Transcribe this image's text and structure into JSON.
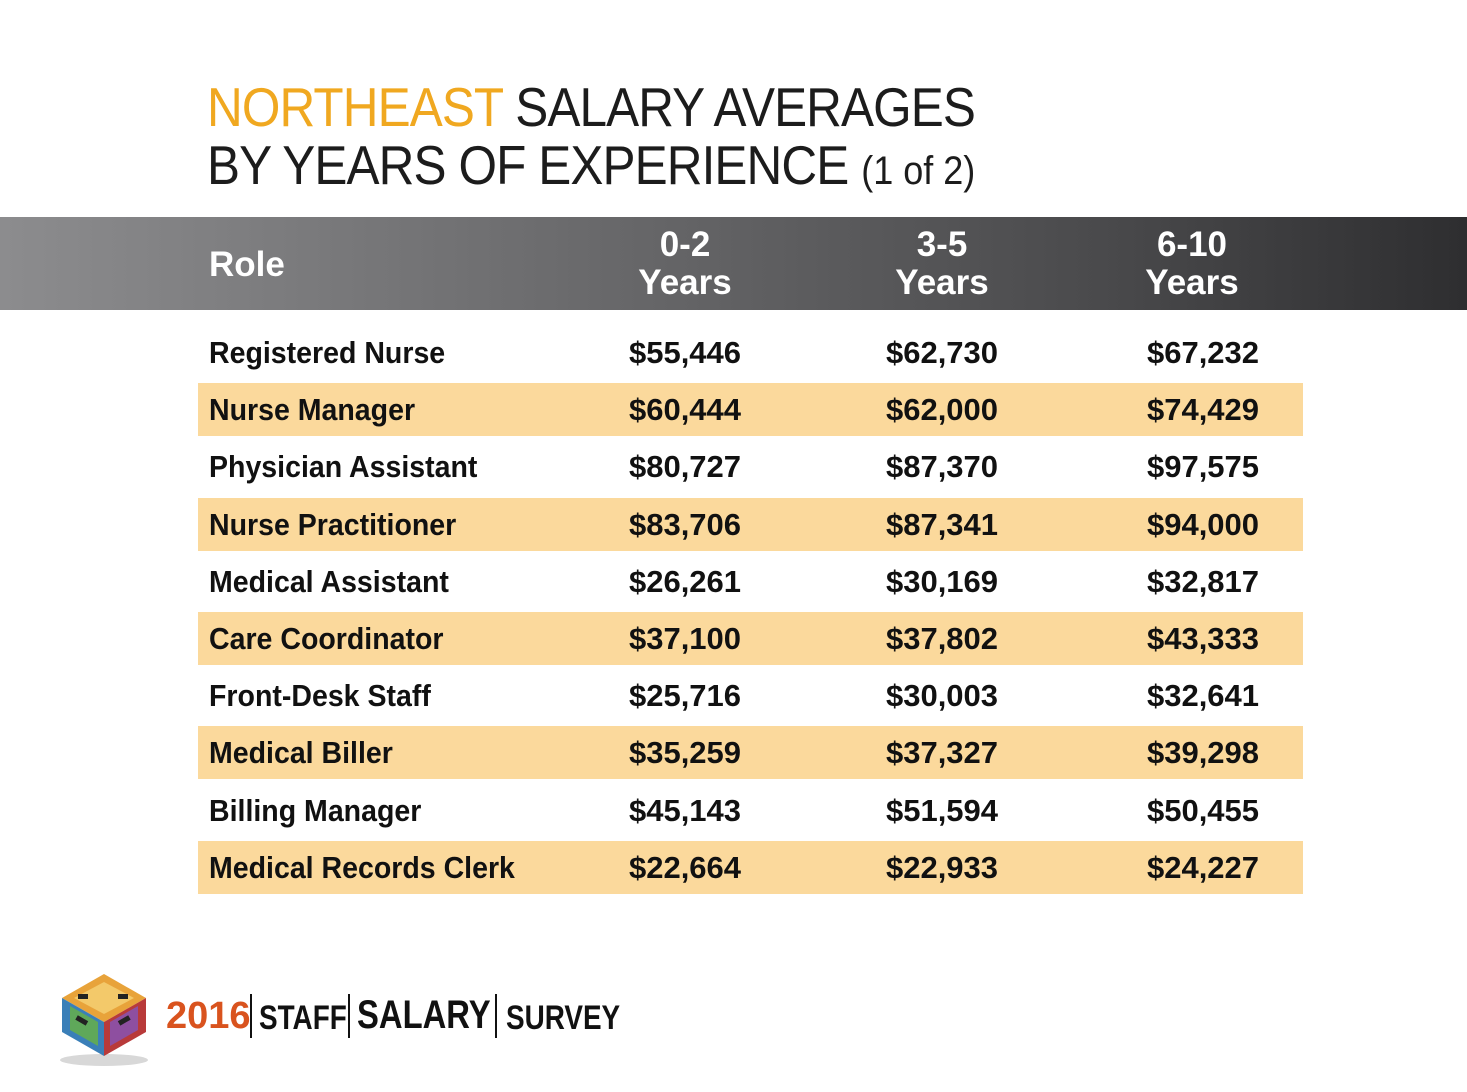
{
  "title": {
    "accent": "NORTHEAST",
    "rest": "SALARY AVERAGES",
    "line2": "BY YEARS OF EXPERIENCE",
    "part": "(1 of 2)"
  },
  "colors": {
    "accent": "#f0a820",
    "row_shade": "#fbd99c",
    "header_dark": "#2e2e30",
    "header_light": "#8c8c8e",
    "footer_year": "#d9531e"
  },
  "chart_data": {
    "type": "table",
    "columns": [
      "Role",
      "0-2 Years",
      "3-5 Years",
      "6-10 Years"
    ],
    "column_headers": [
      {
        "line1": "Role",
        "line2": ""
      },
      {
        "line1": "0-2",
        "line2": "Years"
      },
      {
        "line1": "3-5",
        "line2": "Years"
      },
      {
        "line1": "6-10",
        "line2": "Years"
      }
    ],
    "rows": [
      {
        "role": "Registered Nurse",
        "values": [
          "$55,446",
          "$62,730",
          "$67,232"
        ]
      },
      {
        "role": "Nurse Manager",
        "values": [
          "$60,444",
          "$62,000",
          "$74,429"
        ]
      },
      {
        "role": "Physician Assistant",
        "values": [
          "$80,727",
          "$87,370",
          "$97,575"
        ]
      },
      {
        "role": "Nurse Practitioner",
        "values": [
          "$83,706",
          "$87,341",
          "$94,000"
        ]
      },
      {
        "role": "Medical Assistant",
        "values": [
          "$26,261",
          "$30,169",
          "$32,817"
        ]
      },
      {
        "role": "Care Coordinator",
        "values": [
          "$37,100",
          "$37,802",
          "$43,333"
        ]
      },
      {
        "role": "Front-Desk Staff",
        "values": [
          "$25,716",
          "$30,003",
          "$32,641"
        ]
      },
      {
        "role": "Medical Biller",
        "values": [
          "$35,259",
          "$37,327",
          "$39,298"
        ]
      },
      {
        "role": "Billing Manager",
        "values": [
          "$45,143",
          "$51,594",
          "$50,455"
        ]
      },
      {
        "role": "Medical Records Clerk",
        "values": [
          "$22,664",
          "$22,933",
          "$24,227"
        ]
      }
    ]
  },
  "footer": {
    "year": "2016",
    "word1": "STAFF",
    "word2": "SALARY",
    "word3": "SURVEY",
    "logo_icon": "survey-cube-logo-icon"
  }
}
